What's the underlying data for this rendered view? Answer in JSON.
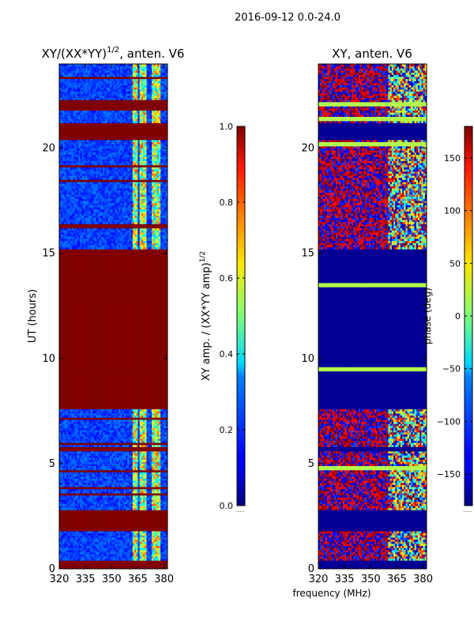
{
  "figure": {
    "suptitle": "2016-09-12 0.0-24.0",
    "shared_xlabel": "frequency (MHz)"
  },
  "chart_data": [
    {
      "type": "heatmap",
      "title_base": "XY/(XX*YY)",
      "title_exp": "1/2",
      "title_tail": ", anten. V6",
      "ylabel": "UT (hours)",
      "xlim": [
        320,
        382
      ],
      "ylim": [
        0,
        24
      ],
      "xticks": [
        320,
        335,
        350,
        365,
        380
      ],
      "yticks": [
        0,
        5,
        10,
        15,
        20
      ],
      "colorbar": {
        "label_base": "XY amp. / (XX*YY amp)",
        "label_exp": "1/2",
        "range": [
          0.0,
          1.0
        ],
        "ticks": [
          "0.0",
          "0.2",
          "0.4",
          "0.6",
          "0.8",
          "1.0"
        ],
        "colormap": "jet"
      },
      "saturated_time_blocks": [
        [
          0.0,
          0.4
        ],
        [
          1.8,
          2.8
        ],
        [
          5.6,
          5.8
        ],
        [
          7.6,
          15.2
        ],
        [
          20.4,
          21.2
        ],
        [
          21.8,
          22.3
        ]
      ],
      "bright_freq_bands": [
        [
          362,
          365
        ],
        [
          366,
          370
        ],
        [
          373,
          378
        ]
      ]
    },
    {
      "type": "heatmap",
      "title": "XY, anten. V6",
      "xlim": [
        320,
        382
      ],
      "ylim": [
        0,
        24
      ],
      "xticks": [
        320,
        335,
        350,
        365,
        380
      ],
      "yticks": [
        0,
        5,
        10,
        15,
        20
      ],
      "colorbar": {
        "label": "phase (deg)",
        "range": [
          -180,
          180
        ],
        "ticks": [
          "−150",
          "−100",
          "−50",
          "0",
          "50",
          "100",
          "150"
        ],
        "colormap": "jet"
      },
      "flagged_time_blocks": [
        [
          0.0,
          0.4
        ],
        [
          1.8,
          2.8
        ],
        [
          5.6,
          5.8
        ],
        [
          7.6,
          15.2
        ],
        [
          20.4,
          21.2
        ]
      ],
      "highlight_lines_ut": [
        9.5,
        13.5,
        20.2,
        21.4,
        22.1,
        4.8
      ]
    }
  ]
}
